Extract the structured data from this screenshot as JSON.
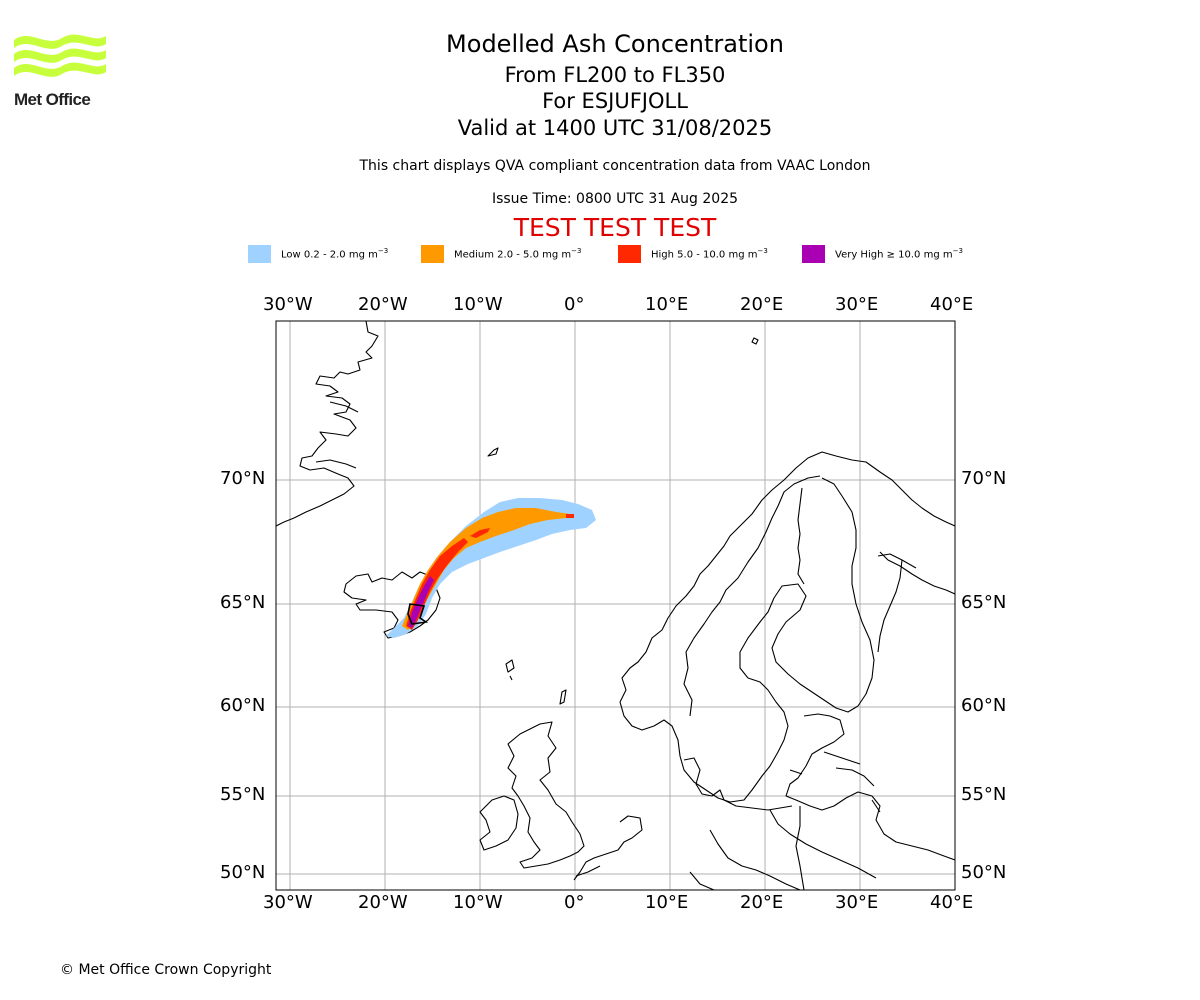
{
  "brand": {
    "name": "Met Office",
    "logo_color": "#c8ff3c"
  },
  "header": {
    "title": "Modelled Ash Concentration",
    "levels": "From FL200 to FL350",
    "volcano": "For ESJUFJOLL",
    "valid": "Valid at 1400 UTC 31/08/2025",
    "description": "This chart displays QVA compliant concentration data from VAAC London",
    "issue_time": "Issue Time: 0800 UTC 31 Aug 2025",
    "test_banner": "TEST TEST TEST",
    "test_banner_color": "#e00000"
  },
  "legend": [
    {
      "label": "Low 0.2 - 2.0 mg m",
      "exp": "−3",
      "color": "#a0d2ff"
    },
    {
      "label": "Medium 2.0 - 5.0 mg m",
      "exp": "−3",
      "color": "#ff9900"
    },
    {
      "label": "High 5.0 - 10.0 mg m",
      "exp": "−3",
      "color": "#ff2800"
    },
    {
      "label": "Very High  ≥  10.0 mg m",
      "exp": "−3",
      "color": "#aa00b4"
    }
  ],
  "map": {
    "extent": {
      "lon": [
        -31.5,
        40
      ],
      "lat": [
        49,
        75
      ]
    },
    "lon_ticks": [
      "30°W",
      "20°W",
      "10°W",
      "0°",
      "10°E",
      "20°E",
      "30°E",
      "40°E"
    ],
    "lat_ticks": [
      "70°N",
      "65°N",
      "60°N",
      "55°N",
      "50°N"
    ],
    "gridlines": true,
    "source_vent": "ESJUFJOLL"
  },
  "footer": {
    "copyright": "© Met Office Crown Copyright"
  }
}
